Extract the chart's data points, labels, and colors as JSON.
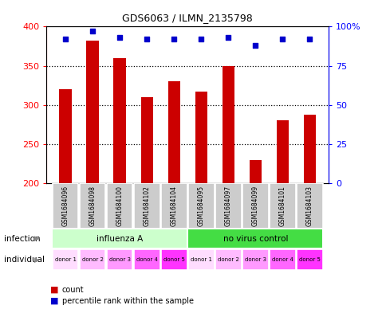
{
  "title": "GDS6063 / ILMN_2135798",
  "samples": [
    "GSM1684096",
    "GSM1684098",
    "GSM1684100",
    "GSM1684102",
    "GSM1684104",
    "GSM1684095",
    "GSM1684097",
    "GSM1684099",
    "GSM1684101",
    "GSM1684103"
  ],
  "counts": [
    320,
    382,
    360,
    310,
    330,
    317,
    350,
    229,
    280,
    287
  ],
  "percentiles": [
    92,
    97,
    93,
    92,
    92,
    92,
    93,
    88,
    92,
    92
  ],
  "ylim_left": [
    200,
    400
  ],
  "ylim_right": [
    0,
    100
  ],
  "yticks_left": [
    200,
    250,
    300,
    350,
    400
  ],
  "yticks_right": [
    0,
    25,
    50,
    75,
    100
  ],
  "ytick_right_labels": [
    "0",
    "25",
    "50",
    "75",
    "100%"
  ],
  "infection_groups": [
    {
      "label": "influenza A",
      "start": 0,
      "end": 5,
      "color": "#ccffcc"
    },
    {
      "label": "no virus control",
      "start": 5,
      "end": 10,
      "color": "#44dd44"
    }
  ],
  "donors": [
    "donor 1",
    "donor 2",
    "donor 3",
    "donor 4",
    "donor 5",
    "donor 1",
    "donor 2",
    "donor 3",
    "donor 4",
    "donor 5"
  ],
  "donor_shades": [
    "#ffddff",
    "#ffbbff",
    "#ff99ff",
    "#ff66ff",
    "#ff33ff",
    "#ffddff",
    "#ffbbff",
    "#ff99ff",
    "#ff66ff",
    "#ff33ff"
  ],
  "bar_color": "#cc0000",
  "dot_color": "#0000cc",
  "sample_bg_color": "#cccccc",
  "infection_label": "infection",
  "individual_label": "individual",
  "legend_count_color": "#cc0000",
  "legend_pct_color": "#0000cc",
  "legend_count_label": "count",
  "legend_pct_label": "percentile rank within the sample",
  "grid_ticks": [
    250,
    300,
    350
  ],
  "bar_width": 0.45
}
